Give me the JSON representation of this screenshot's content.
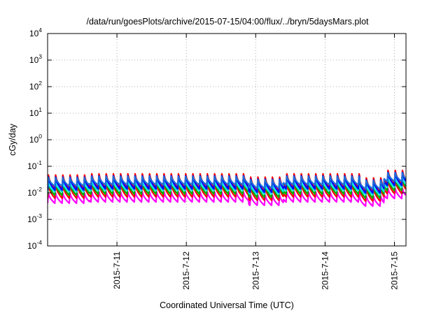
{
  "chart_data": {
    "type": "line",
    "title": "/data/run/goesPlots/archive/2015-07-15/04:00/flux/../bryn/5daysMars.plot",
    "xlabel": "Coordinated Universal Time (UTC)",
    "ylabel": "cGy/day",
    "x_axis": {
      "type": "time",
      "range": [
        "2015-07-10T00:00",
        "2015-07-15T04:00"
      ],
      "tick_labels": [
        "2015-7-11",
        "2015-7-12",
        "2015-7-13",
        "2015-7-14",
        "2015-7-15"
      ]
    },
    "y_axis": {
      "scale": "log",
      "range": [
        0.0001,
        10000
      ],
      "tick_labels": [
        {
          "base": "10",
          "exp": "4"
        },
        {
          "base": "10",
          "exp": "3"
        },
        {
          "base": "10",
          "exp": "2"
        },
        {
          "base": "10",
          "exp": "1"
        },
        {
          "base": "10",
          "exp": "0"
        },
        {
          "base": "10",
          "exp": "-1"
        },
        {
          "base": "10",
          "exp": "-2"
        },
        {
          "base": "10",
          "exp": "-3"
        },
        {
          "base": "10",
          "exp": "-4"
        }
      ]
    },
    "grid": true,
    "legend": "none",
    "cycle_hours": 2.5,
    "series": [
      {
        "color": "#ff00ff",
        "peak": 0.012,
        "trough": 0.0045
      },
      {
        "color": "#ff0000",
        "peak": 0.025,
        "trough": 0.007
      },
      {
        "color": "#00aa00",
        "peak": 0.03,
        "trough": 0.009
      },
      {
        "color": "#00e5e5",
        "peak": 0.03,
        "trough": 0.012
      },
      {
        "color": "#ff0000",
        "peak": 0.06,
        "trough": 0.016
      },
      {
        "color": "#0000ff",
        "peak": 0.05,
        "trough": 0.014
      },
      {
        "color": "#1e6fd9",
        "peak": 0.045,
        "trough": 0.02
      }
    ]
  }
}
